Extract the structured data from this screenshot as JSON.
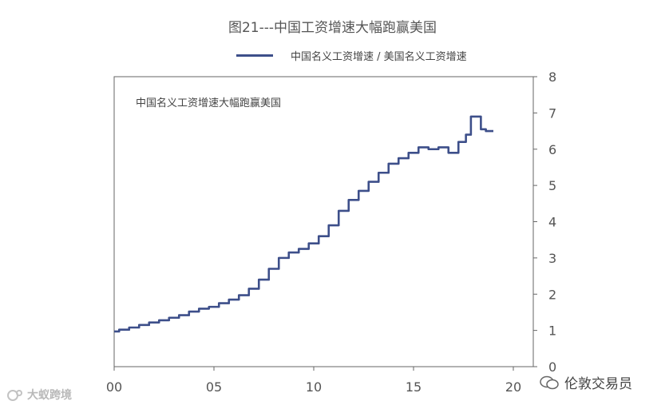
{
  "chart_data": {
    "type": "line",
    "title": "图21---中国工资增速大幅跑赢美国",
    "legend": [
      "中国名义工资增速 / 美国名义工资增速"
    ],
    "annotation": "中国名义工资增速大幅跑赢美国",
    "x_tick_labels": [
      "00",
      "05",
      "10",
      "15",
      "20"
    ],
    "x_ticks": [
      2000,
      2005,
      2010,
      2015,
      2020
    ],
    "xlim": [
      2000,
      2021
    ],
    "y_ticks": [
      0,
      1,
      2,
      3,
      4,
      5,
      6,
      7,
      8
    ],
    "ylim": [
      0,
      8
    ],
    "y_axis_side": "right",
    "grid": false,
    "legend_position": "top",
    "series_color": "#3d4f8a",
    "series": [
      {
        "x": [
          2000.0,
          2000.5,
          2001.0,
          2001.5,
          2002.0,
          2002.5,
          2003.0,
          2003.5,
          2004.0,
          2004.5,
          2005.0,
          2005.5,
          2006.0,
          2006.5,
          2007.0,
          2007.5,
          2008.0,
          2008.5,
          2009.0,
          2009.5,
          2010.0,
          2010.5,
          2011.0,
          2011.5,
          2012.0,
          2012.5,
          2013.0,
          2013.5,
          2014.0,
          2014.5,
          2015.0,
          2015.5,
          2016.0,
          2016.5,
          2017.0,
          2017.5,
          2017.75,
          2018.0,
          2018.25,
          2018.5,
          2018.75,
          2019.0
        ],
        "values": [
          0.97,
          1.02,
          1.08,
          1.15,
          1.22,
          1.28,
          1.35,
          1.42,
          1.52,
          1.6,
          1.65,
          1.75,
          1.85,
          1.97,
          2.15,
          2.4,
          2.7,
          3.0,
          3.15,
          3.25,
          3.4,
          3.6,
          3.9,
          4.3,
          4.6,
          4.85,
          5.1,
          5.35,
          5.6,
          5.75,
          5.9,
          6.05,
          6.0,
          6.05,
          5.9,
          6.2,
          6.4,
          6.9,
          6.9,
          6.55,
          6.5,
          6.5
        ]
      }
    ]
  },
  "watermarks": {
    "left": "大蚁跨境",
    "right": "伦敦交易员"
  }
}
